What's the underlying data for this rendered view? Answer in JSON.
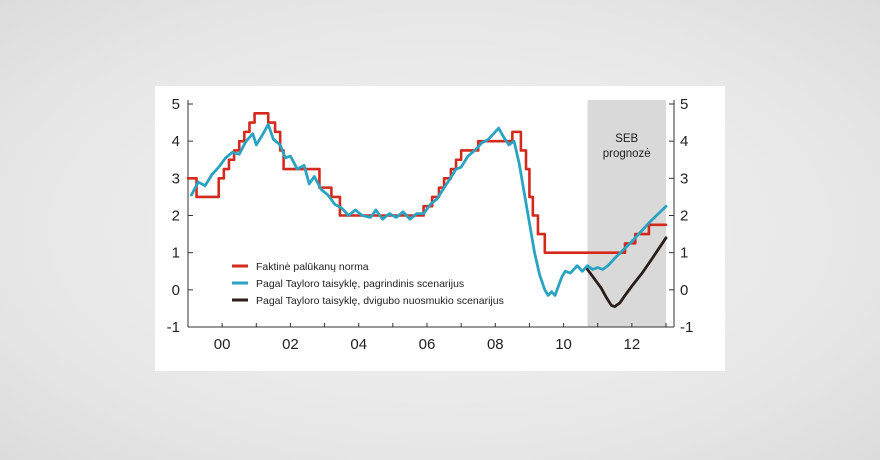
{
  "chart_data": {
    "type": "line",
    "title": "",
    "xlabel": "",
    "ylabel": "",
    "xlim": [
      1999.0,
      2013.0
    ],
    "ylim": [
      -1,
      5
    ],
    "x_ticks": [
      {
        "value": 2000,
        "label": "00"
      },
      {
        "value": 2002,
        "label": "02"
      },
      {
        "value": 2004,
        "label": "04"
      },
      {
        "value": 2006,
        "label": "06"
      },
      {
        "value": 2008,
        "label": "08"
      },
      {
        "value": 2010,
        "label": "10"
      },
      {
        "value": 2012,
        "label": "12"
      }
    ],
    "y_ticks": [
      -1,
      0,
      1,
      2,
      3,
      4,
      5
    ],
    "y_tick_labels": [
      "-1",
      "0",
      "1",
      "2",
      "3",
      "4",
      "5"
    ],
    "grid": false,
    "legend_position": "lower-left",
    "forecast": {
      "label_line1": "SEB",
      "label_line2": "prognozė",
      "start": 2010.7,
      "end": 2013.0,
      "color": "#d9d9d9"
    },
    "series": [
      {
        "name": "Faktinė palūkanų norma",
        "color": "#d42a1e",
        "step": true,
        "points": [
          [
            1999.0,
            3.0
          ],
          [
            1999.25,
            2.5
          ],
          [
            1999.9,
            3.0
          ],
          [
            2000.05,
            3.25
          ],
          [
            2000.2,
            3.5
          ],
          [
            2000.35,
            3.75
          ],
          [
            2000.5,
            4.0
          ],
          [
            2000.65,
            4.25
          ],
          [
            2000.8,
            4.5
          ],
          [
            2000.95,
            4.75
          ],
          [
            2001.35,
            4.5
          ],
          [
            2001.55,
            4.25
          ],
          [
            2001.7,
            3.75
          ],
          [
            2001.8,
            3.25
          ],
          [
            2002.85,
            2.75
          ],
          [
            2003.2,
            2.5
          ],
          [
            2003.45,
            2.0
          ],
          [
            2005.9,
            2.25
          ],
          [
            2006.15,
            2.5
          ],
          [
            2006.35,
            2.75
          ],
          [
            2006.5,
            3.0
          ],
          [
            2006.7,
            3.25
          ],
          [
            2006.85,
            3.5
          ],
          [
            2007.0,
            3.75
          ],
          [
            2007.5,
            4.0
          ],
          [
            2008.5,
            4.25
          ],
          [
            2008.75,
            3.75
          ],
          [
            2008.9,
            3.25
          ],
          [
            2009.0,
            2.5
          ],
          [
            2009.1,
            2.0
          ],
          [
            2009.25,
            1.5
          ],
          [
            2009.45,
            1.0
          ],
          [
            2011.8,
            1.25
          ],
          [
            2012.1,
            1.5
          ],
          [
            2012.5,
            1.75
          ],
          [
            2013.0,
            1.75
          ]
        ]
      },
      {
        "name": "Pagal Tayloro taisyklę, pagrindinis scenarijus",
        "color": "#2aa3c1",
        "step": false,
        "points": [
          [
            1999.1,
            2.55
          ],
          [
            1999.3,
            2.9
          ],
          [
            1999.5,
            2.8
          ],
          [
            1999.7,
            3.1
          ],
          [
            1999.9,
            3.3
          ],
          [
            2000.1,
            3.55
          ],
          [
            2000.3,
            3.7
          ],
          [
            2000.5,
            3.65
          ],
          [
            2000.7,
            4.0
          ],
          [
            2000.9,
            4.2
          ],
          [
            2001.0,
            3.9
          ],
          [
            2001.2,
            4.2
          ],
          [
            2001.35,
            4.45
          ],
          [
            2001.5,
            4.05
          ],
          [
            2001.7,
            3.9
          ],
          [
            2001.85,
            3.55
          ],
          [
            2002.0,
            3.6
          ],
          [
            2002.2,
            3.25
          ],
          [
            2002.4,
            3.35
          ],
          [
            2002.55,
            2.85
          ],
          [
            2002.7,
            3.05
          ],
          [
            2002.9,
            2.7
          ],
          [
            2003.1,
            2.55
          ],
          [
            2003.3,
            2.3
          ],
          [
            2003.5,
            2.2
          ],
          [
            2003.7,
            2.0
          ],
          [
            2003.9,
            2.15
          ],
          [
            2004.1,
            2.0
          ],
          [
            2004.35,
            1.95
          ],
          [
            2004.5,
            2.15
          ],
          [
            2004.7,
            1.9
          ],
          [
            2004.9,
            2.05
          ],
          [
            2005.1,
            1.95
          ],
          [
            2005.3,
            2.1
          ],
          [
            2005.5,
            1.9
          ],
          [
            2005.7,
            2.05
          ],
          [
            2005.9,
            2.05
          ],
          [
            2006.1,
            2.3
          ],
          [
            2006.3,
            2.45
          ],
          [
            2006.5,
            2.75
          ],
          [
            2006.65,
            2.95
          ],
          [
            2006.85,
            3.25
          ],
          [
            2007.0,
            3.3
          ],
          [
            2007.2,
            3.6
          ],
          [
            2007.4,
            3.75
          ],
          [
            2007.6,
            3.95
          ],
          [
            2007.8,
            4.05
          ],
          [
            2007.95,
            4.2
          ],
          [
            2008.1,
            4.35
          ],
          [
            2008.25,
            4.1
          ],
          [
            2008.4,
            3.9
          ],
          [
            2008.55,
            4.0
          ],
          [
            2008.7,
            3.4
          ],
          [
            2008.85,
            2.6
          ],
          [
            2009.0,
            1.8
          ],
          [
            2009.15,
            1.0
          ],
          [
            2009.3,
            0.4
          ],
          [
            2009.45,
            0.0
          ],
          [
            2009.55,
            -0.15
          ],
          [
            2009.65,
            -0.05
          ],
          [
            2009.75,
            -0.15
          ],
          [
            2009.85,
            0.1
          ],
          [
            2009.95,
            0.35
          ],
          [
            2010.05,
            0.5
          ],
          [
            2010.2,
            0.45
          ],
          [
            2010.4,
            0.65
          ],
          [
            2010.55,
            0.5
          ],
          [
            2010.7,
            0.65
          ],
          [
            2010.85,
            0.55
          ],
          [
            2011.0,
            0.6
          ],
          [
            2011.15,
            0.55
          ],
          [
            2011.3,
            0.65
          ],
          [
            2011.5,
            0.85
          ],
          [
            2012.0,
            1.3
          ],
          [
            2012.5,
            1.8
          ],
          [
            2013.0,
            2.25
          ]
        ]
      },
      {
        "name": "Pagal Tayloro taisyklę, dvigubo nuosmukio scenarijus",
        "color": "#2b1e18",
        "step": false,
        "points": [
          [
            2010.7,
            0.55
          ],
          [
            2010.9,
            0.3
          ],
          [
            2011.1,
            0.05
          ],
          [
            2011.25,
            -0.2
          ],
          [
            2011.4,
            -0.42
          ],
          [
            2011.5,
            -0.45
          ],
          [
            2011.65,
            -0.35
          ],
          [
            2011.8,
            -0.15
          ],
          [
            2012.0,
            0.1
          ],
          [
            2012.3,
            0.45
          ],
          [
            2012.6,
            0.85
          ],
          [
            2013.0,
            1.4
          ]
        ]
      }
    ]
  }
}
